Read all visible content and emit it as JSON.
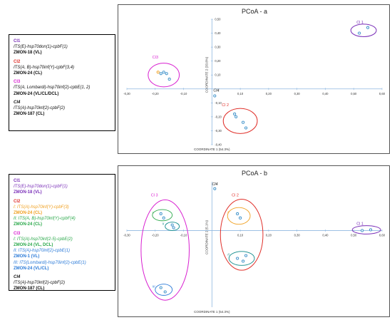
{
  "colors": {
    "purple": "#7a2fb8",
    "red": "#e0302a",
    "magenta": "#d81fd0",
    "teal": "#0e8a8a",
    "orange": "#f0a020",
    "green": "#2aa84a",
    "blue": "#2a7ad8",
    "black": "#111111",
    "point": "#3a8fc8"
  },
  "legend_a": [
    {
      "title": "Cl1",
      "title_color": "purple",
      "lines": [
        {
          "text": "ITS(E)-hsp70don(1)-cpbF(1)",
          "color": "black",
          "style": "italic"
        },
        {
          "text": "ZMON-18 (VL)",
          "color": "black",
          "style": "bold"
        }
      ]
    },
    {
      "title": "Cl2",
      "title_color": "red",
      "lines": [
        {
          "text": "ITS(A, B)-hsp70inf(Y)-cpbF(3,4)",
          "color": "black",
          "style": "italic"
        },
        {
          "text": "ZMON-24 (CL)",
          "color": "black",
          "style": "bold"
        }
      ]
    },
    {
      "title": "Cl3",
      "title_color": "magenta",
      "lines": [
        {
          "text": "ITS(A, Lombardi)-hsp70inf(2)-cpbE(1, 2)",
          "color": "black",
          "style": "italic"
        },
        {
          "text": "ZMON-24 (VL/CL/DCL)",
          "color": "black",
          "style": "bold"
        }
      ]
    },
    {
      "title": "Cl4",
      "title_color": "black",
      "lines": [
        {
          "text": "ITS(A)-hsp70inf(2)-cpbF(2)",
          "color": "black",
          "style": "italic"
        },
        {
          "text": "ZMON-187 (CL)",
          "color": "black",
          "style": "bold"
        }
      ]
    }
  ],
  "legend_b": [
    {
      "title": "Cl1",
      "title_color": "purple",
      "lines": [
        {
          "text": "ITS(E)-hsp70don(1)-cpbF(1)",
          "color": "purple",
          "style": "italic"
        },
        {
          "text": "ZMON-18 (VL)",
          "color": "purple",
          "style": "bold"
        }
      ]
    },
    {
      "title": "Cl2",
      "title_color": "red",
      "lines": [
        {
          "text": "I: ITS(A)-hsp70inf(Y)-cpbF(3)",
          "color": "orange",
          "style": "italic"
        },
        {
          "text": "ZMON-24 (CL)",
          "color": "orange",
          "style": "bold"
        },
        {
          "text": "II: ITS(A, B)-hsp70inf(Y)-cpbF(4)",
          "color": "green",
          "style": "italic"
        },
        {
          "text": "ZMON-24 (CL)",
          "color": "green",
          "style": "bold"
        }
      ]
    },
    {
      "title": "Cl3",
      "title_color": "magenta",
      "lines": [
        {
          "text": "I: ITS(A)-hsp70inf(2-5)-cpbE(2)",
          "color": "green",
          "style": "italic"
        },
        {
          "text": "ZMON-24 (VL, DCL)",
          "color": "green",
          "style": "bold"
        },
        {
          "text": "II: ITS(A)-hsp70inf(2)-cpbE(1)",
          "color": "blue",
          "style": "italic"
        },
        {
          "text": "ZMON-1 (VL)",
          "color": "blue",
          "style": "bold"
        },
        {
          "text": "III: ITS(Lombardi)-hsp70inf(2)-cpbE(1)",
          "color": "blue",
          "style": "italic"
        },
        {
          "text": "ZMON-24 (VL/CL)",
          "color": "blue",
          "style": "bold"
        }
      ]
    },
    {
      "title": "Cl4",
      "title_color": "black",
      "lines": [
        {
          "text": "ITS(A)-hsp70inf(2)-cpbF(2)",
          "color": "black",
          "style": "italic"
        },
        {
          "text": "ZMON-187 (CL)",
          "color": "black",
          "style": "bold"
        }
      ]
    }
  ],
  "chart_data": [
    {
      "type": "scatter",
      "title": "PCoA - a",
      "xlabel": "COORDINATE 1 (54.3%)",
      "ylabel": "COORDINATE 2 (33.8%)",
      "xlim": [
        -0.3,
        0.6
      ],
      "ylim": [
        -0.4,
        0.5
      ],
      "xticks": [
        "-0,30",
        "-0,20",
        "-0,10",
        "0,10",
        "0,20",
        "0,30",
        "0,40",
        "0,50",
        "0,60"
      ],
      "xtick_values": [
        -0.3,
        -0.2,
        -0.1,
        0.1,
        0.2,
        0.3,
        0.4,
        0.5,
        0.6
      ],
      "yticks": [
        "0,50",
        "0,40",
        "0,30",
        "0,20",
        "0,10",
        "-0,10",
        "-0,20",
        "-0,30",
        "-0,40"
      ],
      "ytick_values": [
        0.5,
        0.4,
        0.3,
        0.2,
        0.1,
        -0.1,
        -0.2,
        -0.3,
        -0.4
      ],
      "points": [
        {
          "x": 0.52,
          "y": 0.4,
          "color": "point"
        },
        {
          "x": 0.55,
          "y": 0.44,
          "color": "point"
        },
        {
          "x": -0.19,
          "y": 0.12,
          "color": "orange"
        },
        {
          "x": -0.18,
          "y": 0.11,
          "color": "point"
        },
        {
          "x": -0.17,
          "y": 0.12,
          "color": "point"
        },
        {
          "x": -0.16,
          "y": 0.11,
          "color": "point"
        },
        {
          "x": -0.15,
          "y": 0.07,
          "color": "point"
        },
        {
          "x": 0.01,
          "y": -0.05,
          "color": "point"
        },
        {
          "x": 0.08,
          "y": -0.18,
          "color": "point"
        },
        {
          "x": 0.085,
          "y": -0.2,
          "color": "point"
        },
        {
          "x": 0.11,
          "y": -0.24,
          "color": "point"
        },
        {
          "x": 0.12,
          "y": -0.28,
          "color": "point"
        }
      ],
      "clusters": [
        {
          "label": "Cl 1",
          "color": "purple",
          "cx": 0.535,
          "cy": 0.42,
          "rx": 0.045,
          "ry": 0.045,
          "lx": 0.51,
          "ly": 0.47
        },
        {
          "label": "Cl3",
          "color": "magenta",
          "cx": -0.17,
          "cy": 0.1,
          "rx": 0.055,
          "ry": 0.085,
          "lx": -0.21,
          "ly": 0.22
        },
        {
          "label": "Cl4",
          "color": "black",
          "cx": null,
          "cy": null,
          "lx": 0.005,
          "ly": -0.02
        },
        {
          "label": "Cl 2",
          "color": "red",
          "cx": 0.1,
          "cy": -0.23,
          "rx": 0.06,
          "ry": 0.09,
          "lx": 0.035,
          "ly": -0.125
        }
      ]
    },
    {
      "type": "scatter",
      "title": "PCoA - b",
      "xlabel": "COORDINATE 1 (54.3%)",
      "ylabel": "COORDINATE 2 (5.1%)",
      "xlim": [
        -0.3,
        0.6
      ],
      "ylim": [
        -0.55,
        0.35
      ],
      "xticks": [
        "-0,30",
        "-0,20",
        "-0,10",
        "0,10",
        "0,20",
        "0,30",
        "0,40",
        "0,50",
        "0,60"
      ],
      "xtick_values": [
        -0.3,
        -0.2,
        -0.1,
        0.1,
        0.2,
        0.3,
        0.4,
        0.5,
        0.6
      ],
      "yticks": [],
      "ytick_values": [],
      "points": [
        {
          "x": 0.53,
          "y": 0.0,
          "color": "point"
        },
        {
          "x": 0.56,
          "y": 0.005,
          "color": "point"
        },
        {
          "x": -0.18,
          "y": 0.12,
          "color": "point"
        },
        {
          "x": -0.17,
          "y": 0.09,
          "color": "point"
        },
        {
          "x": -0.14,
          "y": 0.04,
          "color": "point"
        },
        {
          "x": -0.135,
          "y": 0.02,
          "color": "point"
        },
        {
          "x": -0.18,
          "y": -0.41,
          "color": "point"
        },
        {
          "x": -0.165,
          "y": -0.44,
          "color": "point"
        },
        {
          "x": 0.01,
          "y": 0.3,
          "color": "point"
        },
        {
          "x": 0.09,
          "y": 0.12,
          "color": "point"
        },
        {
          "x": 0.1,
          "y": 0.09,
          "color": "point"
        },
        {
          "x": 0.09,
          "y": -0.2,
          "color": "point"
        },
        {
          "x": 0.11,
          "y": -0.22,
          "color": "point"
        },
        {
          "x": 0.12,
          "y": -0.18,
          "color": "point"
        }
      ],
      "clusters": [
        {
          "label": "Cl 1",
          "color": "purple",
          "cx": 0.545,
          "cy": 0.005,
          "rx": 0.05,
          "ry": 0.03,
          "lx": 0.51,
          "ly": 0.04
        },
        {
          "label": "Cl 3",
          "color": "magenta",
          "cx": -0.165,
          "cy": -0.14,
          "rx": 0.085,
          "ry": 0.36,
          "lx": -0.215,
          "ly": 0.245
        },
        {
          "label": "Cl4",
          "color": "black",
          "cx": null,
          "cy": null,
          "lx": 0.0,
          "ly": 0.325
        },
        {
          "label": "Cl 2",
          "color": "red",
          "cx": 0.105,
          "cy": -0.03,
          "rx": 0.075,
          "ry": 0.255,
          "lx": 0.07,
          "ly": 0.245
        }
      ],
      "subclusters": [
        {
          "label": "I",
          "color": "green",
          "cx": -0.175,
          "cy": 0.11,
          "rx": 0.035,
          "ry": 0.04,
          "lx": -0.21,
          "ly": 0.12
        },
        {
          "label": "II",
          "color": "teal",
          "cx": -0.14,
          "cy": 0.03,
          "rx": 0.025,
          "ry": 0.03,
          "lx": -0.175,
          "ly": 0.04
        },
        {
          "label": "III",
          "color": "blue",
          "cx": -0.17,
          "cy": -0.425,
          "rx": 0.03,
          "ry": 0.04,
          "lx": -0.21,
          "ly": -0.41
        },
        {
          "label": "I",
          "color": "orange",
          "cx": 0.095,
          "cy": 0.105,
          "rx": 0.04,
          "ry": 0.06,
          "lx": 0.055,
          "ly": 0.125
        },
        {
          "label": "II",
          "color": "teal",
          "cx": 0.105,
          "cy": -0.2,
          "rx": 0.045,
          "ry": 0.05,
          "lx": 0.055,
          "ly": -0.18
        }
      ]
    }
  ]
}
